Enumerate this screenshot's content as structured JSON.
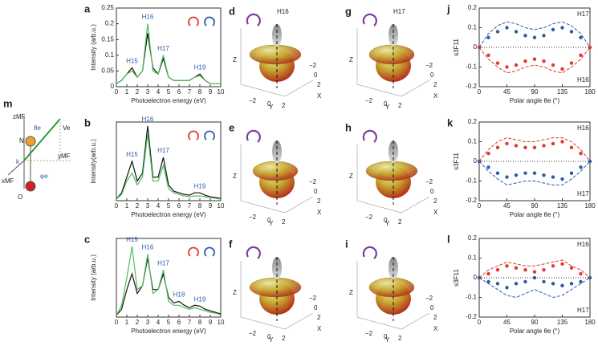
{
  "chart_data": [
    {
      "type": "line",
      "panel": "a",
      "xlabel": "Photoelectron energy (eV)",
      "ylabel": "Intensity (arb.u.)",
      "x": [
        0,
        0.5,
        1,
        1.5,
        2,
        2.5,
        3,
        3.5,
        4,
        4.5,
        5,
        5.5,
        6,
        6.5,
        7,
        7.5,
        8,
        8.5,
        9,
        9.5,
        10
      ],
      "xlim": [
        0,
        10
      ],
      "xticks": [
        0,
        1,
        2,
        3,
        4,
        5,
        6,
        7,
        8,
        9,
        10
      ],
      "ylim": [
        0,
        0.25
      ],
      "yticks": [
        0,
        0.05,
        0.1,
        0.15,
        0.2,
        0.25
      ],
      "series": [
        {
          "color": "#111111",
          "values": [
            0.01,
            0.02,
            0.04,
            0.06,
            0.03,
            0.05,
            0.17,
            0.06,
            0.04,
            0.09,
            0.03,
            0.02,
            0.02,
            0.02,
            0.02,
            0.03,
            0.04,
            0.02,
            0.01,
            0.01,
            0.01
          ]
        },
        {
          "color": "#4dbf5a",
          "values": [
            0.01,
            0.02,
            0.04,
            0.05,
            0.03,
            0.05,
            0.2,
            0.05,
            0.04,
            0.1,
            0.03,
            0.02,
            0.02,
            0.02,
            0.02,
            0.03,
            0.035,
            0.02,
            0.01,
            0.01,
            0.01
          ]
        }
      ],
      "annotations": [
        {
          "text": "H15",
          "x": 1.5
        },
        {
          "text": "H16",
          "x": 3
        },
        {
          "text": "H17",
          "x": 4.5
        },
        {
          "text": "H19",
          "x": 8
        }
      ]
    },
    {
      "type": "line",
      "panel": "b",
      "xlabel": "Photoelectron energy (eV)",
      "ylabel": "Intensity(arb.u.)",
      "x": [
        0,
        0.5,
        1,
        1.5,
        2,
        2.5,
        3,
        3.5,
        4,
        4.5,
        5,
        5.5,
        6,
        6.5,
        7,
        7.5,
        8,
        8.5,
        9,
        9.5,
        10
      ],
      "xlim": [
        0,
        10
      ],
      "xticks": [
        0,
        1,
        2,
        3,
        4,
        5,
        6,
        7,
        8,
        9,
        10
      ],
      "ylim": [
        0,
        1
      ],
      "series": [
        {
          "color": "#111111",
          "values": [
            0.02,
            0.1,
            0.3,
            0.5,
            0.25,
            0.35,
            0.95,
            0.3,
            0.3,
            0.55,
            0.2,
            0.12,
            0.1,
            0.08,
            0.07,
            0.1,
            0.1,
            0.07,
            0.05,
            0.04,
            0.03
          ]
        },
        {
          "color": "#4dbf5a",
          "values": [
            0.02,
            0.08,
            0.25,
            0.35,
            0.2,
            0.3,
            0.85,
            0.25,
            0.25,
            0.45,
            0.15,
            0.1,
            0.08,
            0.06,
            0.05,
            0.06,
            0.06,
            0.05,
            0.04,
            0.03,
            0.02
          ]
        }
      ],
      "annotations": [
        {
          "text": "H15",
          "x": 1.5
        },
        {
          "text": "H16",
          "x": 3
        },
        {
          "text": "H17",
          "x": 4.5
        },
        {
          "text": "H19",
          "x": 8
        }
      ]
    },
    {
      "type": "line",
      "panel": "c",
      "xlabel": "Photoelectron energy (eV)",
      "ylabel": "Intensity (arb.u.)",
      "x": [
        0,
        0.5,
        1,
        1.5,
        2,
        2.5,
        3,
        3.5,
        4,
        4.5,
        5,
        5.5,
        6,
        6.5,
        7,
        7.5,
        8,
        8.5,
        9,
        9.5,
        10
      ],
      "xlim": [
        0,
        10
      ],
      "xticks": [
        0,
        1,
        2,
        3,
        4,
        5,
        6,
        7,
        8,
        9,
        10
      ],
      "ylim": [
        0,
        1
      ],
      "series": [
        {
          "color": "#111111",
          "values": [
            0.02,
            0.1,
            0.35,
            0.55,
            0.3,
            0.4,
            0.75,
            0.35,
            0.35,
            0.55,
            0.25,
            0.18,
            0.2,
            0.15,
            0.12,
            0.15,
            0.14,
            0.1,
            0.08,
            0.06,
            0.04
          ]
        },
        {
          "color": "#4dbf5a",
          "values": [
            0.02,
            0.15,
            0.5,
            0.9,
            0.35,
            0.4,
            0.8,
            0.3,
            0.35,
            0.6,
            0.2,
            0.15,
            0.15,
            0.12,
            0.1,
            0.12,
            0.1,
            0.08,
            0.06,
            0.05,
            0.03
          ]
        }
      ],
      "annotations": [
        {
          "text": "H15",
          "x": 1.5
        },
        {
          "text": "H16",
          "x": 3
        },
        {
          "text": "H17",
          "x": 4.5
        },
        {
          "text": "H18",
          "x": 6
        },
        {
          "text": "H19",
          "x": 8
        }
      ]
    },
    {
      "type": "asym",
      "panel": "j",
      "xlabel": "Polar angle θe (°)",
      "ylabel": "s3F11",
      "x": [
        0,
        15,
        30,
        45,
        60,
        75,
        90,
        105,
        120,
        135,
        150,
        165,
        180
      ],
      "xlim": [
        0,
        180
      ],
      "xticks": [
        0,
        45,
        90,
        135,
        180
      ],
      "ylim": [
        -0.2,
        0.2
      ],
      "yticks": [
        -0.2,
        -0.1,
        0,
        0.1,
        0.2
      ],
      "series": [
        {
          "name": "H17",
          "color": "#2a5ca8",
          "style": "points",
          "values": [
            0,
            0.05,
            0.08,
            0.1,
            0.08,
            0.06,
            0.05,
            0.06,
            0.09,
            0.1,
            0.08,
            0.05,
            0
          ]
        },
        {
          "name": "H16",
          "color": "#e0392b",
          "style": "points",
          "values": [
            0,
            -0.04,
            -0.08,
            -0.1,
            -0.09,
            -0.07,
            -0.06,
            -0.07,
            -0.09,
            -0.11,
            -0.08,
            -0.04,
            0
          ]
        },
        {
          "color": "#2a5ca8",
          "style": "dashed",
          "values": [
            0,
            0.07,
            0.11,
            0.13,
            0.12,
            0.1,
            0.09,
            0.1,
            0.12,
            0.13,
            0.11,
            0.07,
            0
          ]
        },
        {
          "color": "#e0392b",
          "style": "dashed",
          "values": [
            0,
            -0.06,
            -0.1,
            -0.13,
            -0.12,
            -0.1,
            -0.09,
            -0.1,
            -0.12,
            -0.13,
            -0.1,
            -0.06,
            0
          ]
        }
      ]
    },
    {
      "type": "asym",
      "panel": "k",
      "xlabel": "Polar angle θe (°)",
      "ylabel": "s3F11",
      "x": [
        0,
        15,
        30,
        45,
        60,
        75,
        90,
        105,
        120,
        135,
        150,
        165,
        180
      ],
      "xlim": [
        0,
        180
      ],
      "xticks": [
        0,
        45,
        90,
        135,
        180
      ],
      "ylim": [
        -0.2,
        0.2
      ],
      "yticks": [
        -0.2,
        -0.1,
        0,
        0.1,
        0.2
      ],
      "series": [
        {
          "name": "H16",
          "color": "#e0392b",
          "style": "points",
          "values": [
            0,
            0.04,
            0.07,
            0.09,
            0.08,
            0.07,
            0.07,
            0.08,
            0.09,
            0.1,
            0.07,
            0.04,
            0
          ]
        },
        {
          "name": "H17",
          "color": "#2a5ca8",
          "style": "points",
          "values": [
            0,
            -0.03,
            -0.06,
            -0.08,
            -0.07,
            -0.06,
            -0.06,
            -0.07,
            -0.08,
            -0.09,
            -0.06,
            -0.03,
            0
          ]
        },
        {
          "color": "#e0392b",
          "style": "dashed",
          "values": [
            0,
            0.06,
            0.1,
            0.12,
            0.11,
            0.1,
            0.1,
            0.11,
            0.12,
            0.12,
            0.1,
            0.06,
            0
          ]
        },
        {
          "color": "#2a5ca8",
          "style": "dashed",
          "values": [
            0,
            -0.05,
            -0.09,
            -0.12,
            -0.11,
            -0.1,
            -0.1,
            -0.11,
            -0.12,
            -0.12,
            -0.09,
            -0.05,
            0
          ]
        }
      ]
    },
    {
      "type": "asym",
      "panel": "l",
      "xlabel": "Polar angle θe (°)",
      "ylabel": "s3F11",
      "x": [
        0,
        15,
        30,
        45,
        60,
        75,
        90,
        105,
        120,
        135,
        150,
        165,
        180
      ],
      "xlim": [
        0,
        180
      ],
      "xticks": [
        0,
        45,
        90,
        135,
        180
      ],
      "ylim": [
        -0.2,
        0.2
      ],
      "yticks": [
        -0.2,
        -0.1,
        0,
        0.1,
        0.2
      ],
      "series": [
        {
          "name": "H16",
          "color": "#e0392b",
          "style": "points",
          "values": [
            0,
            0.02,
            0.04,
            0.06,
            0.05,
            0.04,
            0.03,
            0.04,
            0.06,
            0.07,
            0.05,
            0.02,
            0
          ]
        },
        {
          "name": "H17",
          "color": "#2a5ca8",
          "style": "points",
          "values": [
            0,
            -0.02,
            -0.03,
            -0.05,
            -0.03,
            -0.02,
            0,
            -0.02,
            -0.03,
            -0.04,
            -0.03,
            -0.02,
            0
          ]
        },
        {
          "color": "#e0392b",
          "style": "dashed",
          "values": [
            0,
            0.04,
            0.06,
            0.08,
            0.07,
            0.06,
            0.06,
            0.07,
            0.08,
            0.09,
            0.06,
            0.04,
            0
          ]
        },
        {
          "color": "#2a5ca8",
          "style": "dashed",
          "values": [
            0,
            -0.03,
            -0.06,
            -0.09,
            -0.1,
            -0.08,
            -0.06,
            -0.08,
            -0.1,
            -0.09,
            -0.06,
            -0.03,
            0
          ]
        }
      ]
    }
  ],
  "surfaces": [
    {
      "panel": "d",
      "title": "H16"
    },
    {
      "panel": "e"
    },
    {
      "panel": "f"
    },
    {
      "panel": "g",
      "title": "H17"
    },
    {
      "panel": "h"
    },
    {
      "panel": "i"
    }
  ],
  "surface_axes": {
    "z": "Z",
    "y": "Y",
    "x": "X",
    "ticks": [
      "−2",
      "0",
      "2"
    ]
  },
  "diagram": {
    "panel": "m",
    "z": "zMF",
    "theta": "θe",
    "v": "Ve",
    "n": "N",
    "k": "k",
    "y": "yMF",
    "x": "xMF",
    "phi": "φe",
    "o": "O"
  }
}
